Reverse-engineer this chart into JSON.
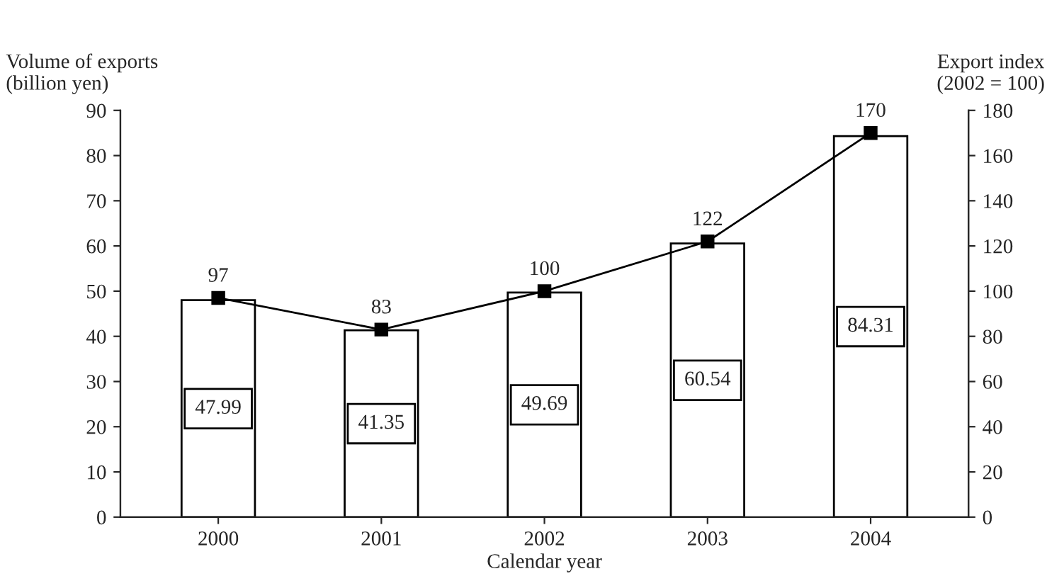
{
  "chart_data": {
    "type": "bar",
    "xlabel": "Calendar year",
    "ylabel": "Volume of exports\n(billion yen)",
    "y2label": "Export index\n(2002 = 100)",
    "categories": [
      "2000",
      "2001",
      "2002",
      "2003",
      "2004"
    ],
    "series": [
      {
        "color": "#ffffff",
        "values": [
          47.99,
          41.35,
          49.69,
          60.54,
          84.31
        ]
      },
      {
        "type": "line",
        "axis": "y2",
        "color": "#000000",
        "marker": "square",
        "values": [
          97,
          83,
          100,
          122,
          170
        ]
      }
    ],
    "data_labels": true,
    "grid": false,
    "legend": false,
    "ylim": [
      0,
      90
    ],
    "yticks": [
      0,
      10,
      20,
      30,
      40,
      50,
      60,
      70,
      80,
      90
    ],
    "y2lim": [
      0,
      180
    ],
    "y2ticks": [
      0,
      20,
      40,
      60,
      80,
      100,
      120,
      140,
      160,
      180
    ]
  }
}
